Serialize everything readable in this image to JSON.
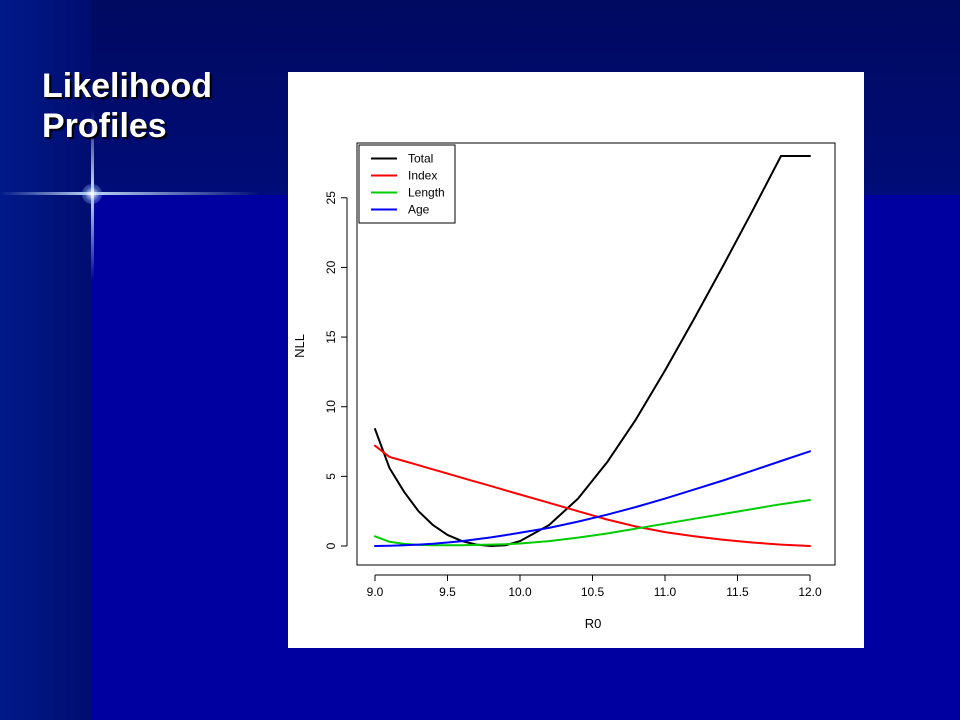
{
  "slide": {
    "title_line1": "Likelihood",
    "title_line2": "Profiles"
  },
  "chart_data": {
    "type": "line",
    "xlabel": "R0",
    "ylabel": "NLL",
    "xlim": [
      9.0,
      12.0
    ],
    "ylim": [
      0,
      28
    ],
    "x_ticks": [
      "9.0",
      "9.5",
      "10.0",
      "10.5",
      "11.0",
      "11.5",
      "12.0"
    ],
    "y_ticks": [
      "0",
      "5",
      "10",
      "15",
      "20",
      "25"
    ],
    "legend_position": "top-left",
    "grid": false,
    "x": [
      9.0,
      9.1,
      9.2,
      9.3,
      9.4,
      9.5,
      9.6,
      9.7,
      9.8,
      9.9,
      10.0,
      10.2,
      10.4,
      10.6,
      10.8,
      11.0,
      11.2,
      11.4,
      11.6,
      11.8,
      12.0
    ],
    "series": [
      {
        "name": "Total",
        "color": "#000000",
        "values": [
          8.4,
          5.6,
          3.9,
          2.5,
          1.5,
          0.8,
          0.35,
          0.1,
          0.0,
          0.05,
          0.35,
          1.5,
          3.4,
          6.0,
          9.1,
          12.6,
          16.3,
          20.1,
          24.0,
          28.0,
          28.0
        ]
      },
      {
        "name": "Index",
        "color": "#ff0000",
        "values": [
          7.2,
          6.4,
          6.1,
          5.8,
          5.5,
          5.2,
          4.9,
          4.6,
          4.3,
          4.0,
          3.7,
          3.1,
          2.5,
          1.9,
          1.4,
          1.0,
          0.7,
          0.45,
          0.25,
          0.1,
          0.0
        ]
      },
      {
        "name": "Length",
        "color": "#00cc00",
        "values": [
          0.7,
          0.3,
          0.15,
          0.08,
          0.05,
          0.05,
          0.06,
          0.08,
          0.1,
          0.13,
          0.18,
          0.35,
          0.6,
          0.9,
          1.25,
          1.6,
          1.95,
          2.3,
          2.65,
          3.0,
          3.3
        ]
      },
      {
        "name": "Age",
        "color": "#0000ff",
        "values": [
          0.0,
          0.02,
          0.05,
          0.1,
          0.16,
          0.25,
          0.35,
          0.48,
          0.62,
          0.78,
          0.95,
          1.3,
          1.75,
          2.25,
          2.8,
          3.4,
          4.05,
          4.7,
          5.4,
          6.1,
          6.8
        ]
      }
    ]
  }
}
